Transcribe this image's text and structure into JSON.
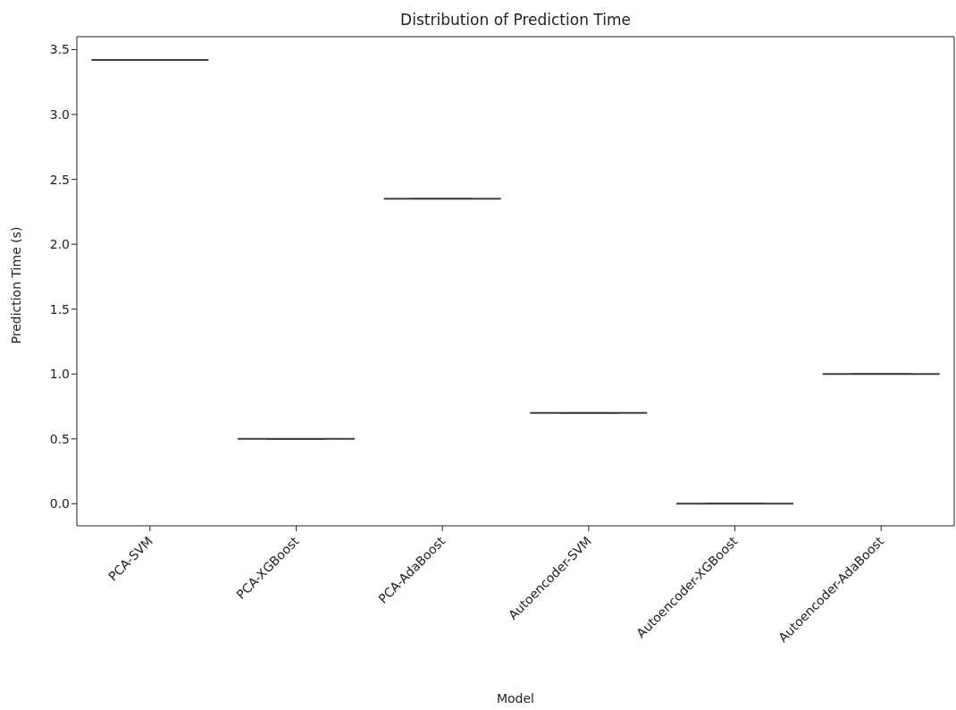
{
  "chart_data": {
    "type": "box",
    "title": "Distribution of Prediction Time",
    "xlabel": "Model",
    "ylabel": "Prediction Time (s)",
    "categories": [
      "PCA-SVM",
      "PCA-XGBoost",
      "PCA-AdaBoost",
      "Autoencoder-SVM",
      "Autoencoder-XGBoost",
      "Autoencoder-AdaBoost"
    ],
    "color": "#3f3f3f",
    "boxes": [
      {
        "low": 3.42,
        "q1": 3.42,
        "median": 3.42,
        "q3": 3.42,
        "high": 3.42
      },
      {
        "low": 0.5,
        "q1": 0.5,
        "median": 0.5,
        "q3": 0.5,
        "high": 0.5
      },
      {
        "low": 2.35,
        "q1": 2.35,
        "median": 2.35,
        "q3": 2.35,
        "high": 2.35
      },
      {
        "low": 0.7,
        "q1": 0.7,
        "median": 0.7,
        "q3": 0.7,
        "high": 0.7
      },
      {
        "low": 0.0,
        "q1": 0.0,
        "median": 0.0,
        "q3": 0.0,
        "high": 0.0
      },
      {
        "low": 1.0,
        "q1": 1.0,
        "median": 1.0,
        "q3": 1.0,
        "high": 1.0
      }
    ],
    "ylim": [
      -0.17,
      3.6
    ],
    "yticks": [
      {
        "value": 0,
        "label": "0.0"
      },
      {
        "value": 0.5,
        "label": "0.5"
      },
      {
        "value": 1,
        "label": "1.0"
      },
      {
        "value": 1.5,
        "label": "1.5"
      },
      {
        "value": 2,
        "label": "2.0"
      },
      {
        "value": 2.5,
        "label": "2.5"
      },
      {
        "value": 3,
        "label": "3.0"
      },
      {
        "value": 3.5,
        "label": "3.5"
      }
    ],
    "grid": false
  }
}
